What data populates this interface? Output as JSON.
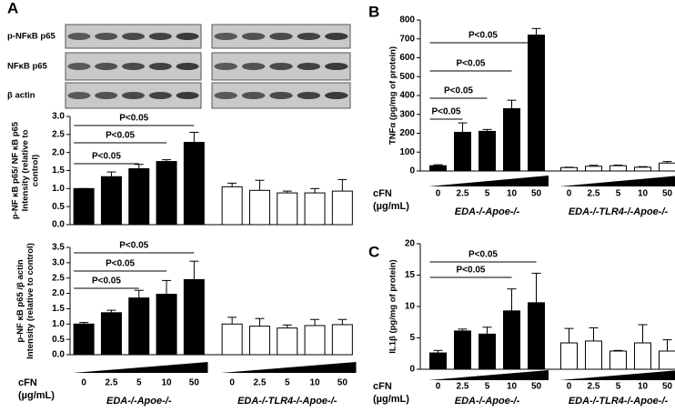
{
  "chart_data": [
    {
      "type": "bar",
      "panel": "A",
      "blot_labels": [
        "p-NFκB p65",
        "NFκB p65",
        "β actin"
      ],
      "ylabel": [
        "p-NF κB p65/ NF κB p65",
        "Intensity (relative to",
        "control)"
      ],
      "series": [
        {
          "color": "#000000",
          "values": [
            1.0,
            1.33,
            1.55,
            1.75,
            2.28
          ],
          "errors": [
            0,
            0.13,
            0.12,
            0.05,
            0.28
          ]
        },
        {
          "color": "#ffffff",
          "values": [
            1.05,
            0.95,
            0.88,
            0.88,
            0.93
          ],
          "errors": [
            0.1,
            0.28,
            0.05,
            0.12,
            0.32
          ]
        }
      ],
      "ylim": [
        0,
        3.0
      ],
      "yticks": [
        {
          "value": 0,
          "label": "0.0"
        },
        {
          "value": 0.5,
          "label": "0.5"
        },
        {
          "value": 1,
          "label": "1.0"
        },
        {
          "value": 1.5,
          "label": "1.5"
        },
        {
          "value": 2,
          "label": "2.0"
        },
        {
          "value": 2.5,
          "label": "2.5"
        },
        {
          "value": 3,
          "label": "3.0"
        }
      ],
      "annotations": [
        "P<0.05",
        "P<0.05",
        "P<0.05"
      ]
    },
    {
      "type": "bar",
      "ylabel": [
        "p-NF κB p65 /β actin",
        "Intensity (relative to control)"
      ],
      "x_label": [
        "cFN",
        "(µg/mL)"
      ],
      "categories": [
        "0",
        "2.5",
        "5",
        "10",
        "50"
      ],
      "series": [
        {
          "name": "EDA-/-Apoe-/-",
          "color": "#000000",
          "values": [
            1.0,
            1.37,
            1.85,
            1.97,
            2.45
          ],
          "errors": [
            0.05,
            0.08,
            0.25,
            0.45,
            0.6
          ]
        },
        {
          "name": "EDA-/-TLR4-/-Apoe-/-",
          "color": "#ffffff",
          "values": [
            1.0,
            0.93,
            0.87,
            0.95,
            0.98
          ],
          "errors": [
            0.22,
            0.25,
            0.1,
            0.2,
            0.17
          ]
        }
      ],
      "ylim": [
        0,
        3.5
      ],
      "yticks": [
        {
          "value": 0,
          "label": "0.0"
        },
        {
          "value": 0.5,
          "label": "0.5"
        },
        {
          "value": 1,
          "label": "1.0"
        },
        {
          "value": 1.5,
          "label": "1.5"
        },
        {
          "value": 2,
          "label": "2.0"
        },
        {
          "value": 2.5,
          "label": "2.5"
        },
        {
          "value": 3,
          "label": "3.0"
        },
        {
          "value": 3.5,
          "label": "3.5"
        }
      ],
      "annotations": [
        "P<0.05",
        "P<0.05",
        "P<0.05"
      ]
    },
    {
      "type": "bar",
      "panel": "B",
      "ylabel": [
        "TNFα (pg/mg of protein)"
      ],
      "x_label": [
        "cFN",
        "(µg/mL)"
      ],
      "categories": [
        "0",
        "2.5",
        "5",
        "10",
        "50"
      ],
      "series": [
        {
          "name": "EDA-/-Apoe-/-",
          "color": "#000000",
          "values": [
            28,
            205,
            210,
            330,
            720
          ],
          "errors": [
            5,
            50,
            10,
            45,
            35
          ]
        },
        {
          "name": "EDA-/-TLR4-/-Apoe-/-",
          "color": "#ffffff",
          "values": [
            18,
            25,
            28,
            20,
            42
          ],
          "errors": [
            2,
            5,
            3,
            3,
            8
          ]
        }
      ],
      "ylim": [
        0,
        800
      ],
      "yticks": [
        0,
        100,
        200,
        300,
        400,
        500,
        600,
        700,
        800
      ],
      "annotations": [
        "P<0.05",
        "P<0.05",
        "P<0.05",
        "P<0.05"
      ]
    },
    {
      "type": "bar",
      "panel": "C",
      "ylabel": [
        "IL1β (pg/mg of protein)"
      ],
      "x_label": [
        "cFN",
        "(µg/mL)"
      ],
      "categories": [
        "0",
        "2.5",
        "5",
        "10",
        "50"
      ],
      "series": [
        {
          "name": "EDA-/-Apoe-/-",
          "color": "#000000",
          "values": [
            2.6,
            6.1,
            5.6,
            9.3,
            10.6
          ],
          "errors": [
            0.4,
            0.3,
            1.1,
            3.5,
            4.7
          ]
        },
        {
          "name": "EDA-/-TLR4-/-Apoe-/-",
          "color": "#ffffff",
          "values": [
            4.2,
            4.5,
            2.9,
            4.2,
            2.9
          ],
          "errors": [
            2.3,
            2.1,
            0.1,
            2.9,
            1.8
          ]
        }
      ],
      "ylim": [
        0,
        20
      ],
      "yticks": [
        0,
        5,
        10,
        15,
        20
      ],
      "annotations": [
        "P<0.05",
        "P<0.05"
      ]
    }
  ]
}
